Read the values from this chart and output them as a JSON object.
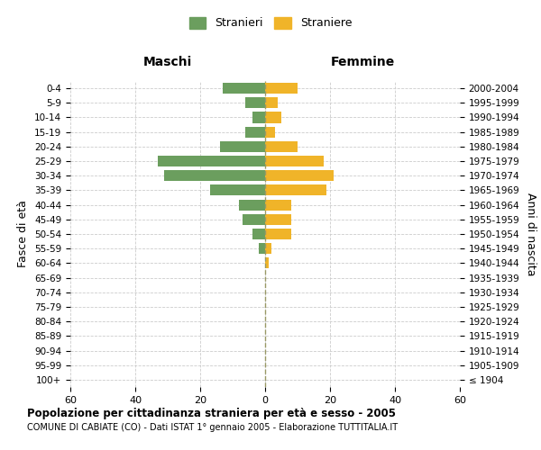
{
  "age_groups": [
    "100+",
    "95-99",
    "90-94",
    "85-89",
    "80-84",
    "75-79",
    "70-74",
    "65-69",
    "60-64",
    "55-59",
    "50-54",
    "45-49",
    "40-44",
    "35-39",
    "30-34",
    "25-29",
    "20-24",
    "15-19",
    "10-14",
    "5-9",
    "0-4"
  ],
  "birth_years": [
    "≤ 1904",
    "1905-1909",
    "1910-1914",
    "1915-1919",
    "1920-1924",
    "1925-1929",
    "1930-1934",
    "1935-1939",
    "1940-1944",
    "1945-1949",
    "1950-1954",
    "1955-1959",
    "1960-1964",
    "1965-1969",
    "1970-1974",
    "1975-1979",
    "1980-1984",
    "1985-1989",
    "1990-1994",
    "1995-1999",
    "2000-2004"
  ],
  "males": [
    0,
    0,
    0,
    0,
    0,
    0,
    0,
    0,
    0,
    2,
    4,
    7,
    8,
    17,
    31,
    33,
    14,
    6,
    4,
    6,
    13
  ],
  "females": [
    0,
    0,
    0,
    0,
    0,
    0,
    0,
    0,
    1,
    2,
    8,
    8,
    8,
    19,
    21,
    18,
    10,
    3,
    5,
    4,
    10
  ],
  "male_color": "#6b9e5e",
  "female_color": "#f0b429",
  "title": "Popolazione per cittadinanza straniera per età e sesso - 2005",
  "subtitle": "COMUNE DI CABIATE (CO) - Dati ISTAT 1° gennaio 2005 - Elaborazione TUTTITALIA.IT",
  "left_label": "Maschi",
  "right_label": "Femmine",
  "ylabel_left": "Fasce di età",
  "ylabel_right": "Anni di nascita",
  "xlim": 60,
  "legend_labels": [
    "Stranieri",
    "Straniere"
  ],
  "background_color": "#ffffff",
  "grid_color": "#cccccc"
}
